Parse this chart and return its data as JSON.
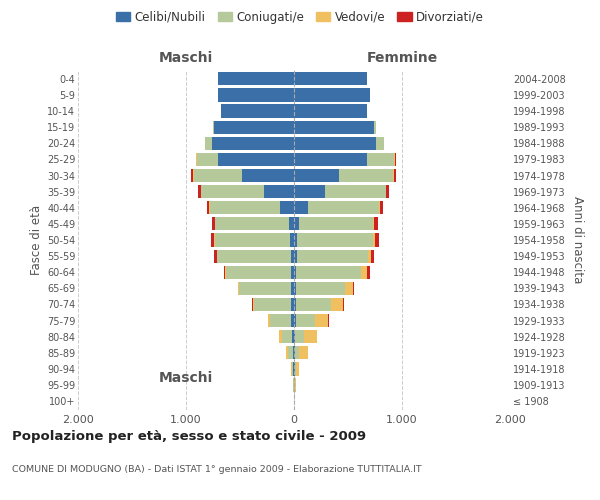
{
  "age_groups": [
    "100+",
    "95-99",
    "90-94",
    "85-89",
    "80-84",
    "75-79",
    "70-74",
    "65-69",
    "60-64",
    "55-59",
    "50-54",
    "45-49",
    "40-44",
    "35-39",
    "30-34",
    "25-29",
    "20-24",
    "15-19",
    "10-14",
    "5-9",
    "0-4"
  ],
  "birth_years": [
    "≤ 1908",
    "1909-1913",
    "1914-1918",
    "1919-1923",
    "1924-1928",
    "1929-1933",
    "1934-1938",
    "1939-1943",
    "1944-1948",
    "1949-1953",
    "1954-1958",
    "1959-1963",
    "1964-1968",
    "1969-1973",
    "1974-1978",
    "1979-1983",
    "1984-1988",
    "1989-1993",
    "1994-1998",
    "1999-2003",
    "2004-2008"
  ],
  "males": {
    "celibe": [
      0,
      2,
      5,
      10,
      15,
      25,
      30,
      30,
      30,
      30,
      35,
      50,
      130,
      280,
      480,
      700,
      760,
      740,
      680,
      700,
      700
    ],
    "coniugato": [
      0,
      5,
      15,
      50,
      100,
      200,
      340,
      480,
      600,
      680,
      700,
      680,
      650,
      580,
      450,
      200,
      60,
      10,
      0,
      0,
      0
    ],
    "vedovo": [
      0,
      2,
      5,
      15,
      25,
      15,
      10,
      5,
      5,
      5,
      5,
      5,
      5,
      5,
      5,
      5,
      0,
      0,
      0,
      0,
      0
    ],
    "divorziato": [
      0,
      0,
      0,
      0,
      0,
      5,
      10,
      5,
      15,
      30,
      30,
      25,
      20,
      20,
      15,
      5,
      0,
      0,
      0,
      0,
      0
    ]
  },
  "females": {
    "nubile": [
      0,
      2,
      5,
      8,
      10,
      15,
      15,
      20,
      20,
      25,
      30,
      50,
      130,
      290,
      420,
      680,
      760,
      740,
      680,
      700,
      680
    ],
    "coniugata": [
      0,
      5,
      15,
      40,
      80,
      180,
      330,
      450,
      600,
      660,
      700,
      680,
      660,
      560,
      500,
      250,
      70,
      15,
      0,
      0,
      0
    ],
    "vedova": [
      2,
      10,
      25,
      80,
      120,
      120,
      110,
      80,
      60,
      30,
      20,
      15,
      10,
      5,
      5,
      5,
      0,
      0,
      0,
      0,
      0
    ],
    "divorziata": [
      0,
      0,
      0,
      0,
      0,
      5,
      5,
      5,
      25,
      30,
      35,
      30,
      25,
      20,
      20,
      5,
      0,
      0,
      0,
      0,
      0
    ]
  },
  "colors": {
    "celibe": "#3a6fa8",
    "coniugato": "#b5c99a",
    "vedovo": "#f0c060",
    "divorziato": "#cc2222"
  },
  "title": "Popolazione per età, sesso e stato civile - 2009",
  "subtitle": "COMUNE DI MODUGNO (BA) - Dati ISTAT 1° gennaio 2009 - Elaborazione TUTTITALIA.IT",
  "ylabel_left": "Fasce di età",
  "ylabel_right": "Anni di nascita",
  "xlabel_left": "Maschi",
  "xlabel_right": "Femmine",
  "xlim": 2000,
  "background_color": "#ffffff",
  "grid_color": "#cccccc",
  "legend_labels": [
    "Celibi/Nubili",
    "Coniugati/e",
    "Vedovi/e",
    "Divorziati/e"
  ]
}
